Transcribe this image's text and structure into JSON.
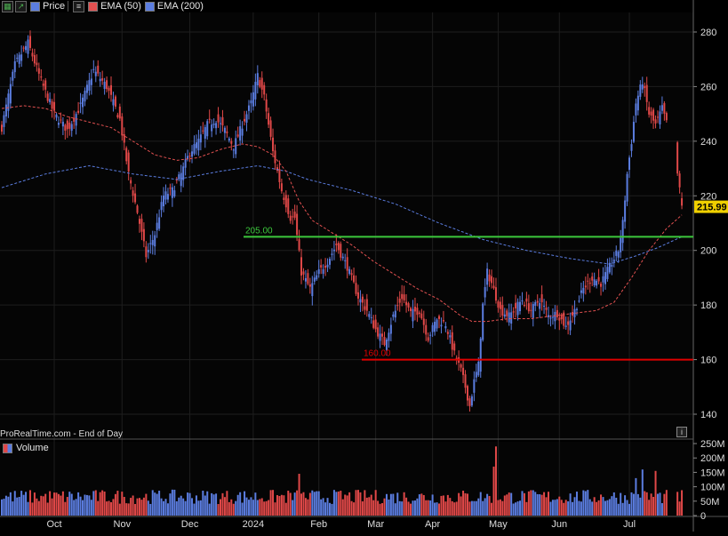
{
  "header": {
    "price_label": "Price",
    "ema50_label": "EMA (50)",
    "ema200_label": "EMA (200)",
    "ema50_color": "#e05050",
    "ema200_color": "#5b7de0",
    "icons": [
      "grid-icon",
      "trend-up-icon",
      "menu-icon"
    ]
  },
  "source_label": "ProRealTime.com - End of Day",
  "volume_label": "Volume",
  "colors": {
    "up": "#5b7de0",
    "down": "#e04848",
    "support": "#e00000",
    "resistance": "#3cc83c",
    "background": "#000000",
    "grid": "#1e1e1e"
  },
  "chart_data": {
    "type": "candlestick",
    "x_tick_labels": [
      "Oct",
      "Nov",
      "Dec",
      "2024",
      "Feb",
      "Mar",
      "Apr",
      "May",
      "Jun",
      "Jul"
    ],
    "y_tick_labels": [
      "140",
      "160",
      "180",
      "200",
      "220",
      "240",
      "260",
      "280"
    ],
    "ylim": [
      135,
      285
    ],
    "volume_tick_labels": [
      "250M",
      "200M",
      "150M",
      "100M",
      "50M",
      "0"
    ],
    "volume_ylim": [
      0,
      250
    ],
    "last_price_label": "215.99",
    "last_price": 215.99,
    "horizontal_levels": [
      {
        "label": "205.00",
        "value": 205.0,
        "kind": "resistance"
      },
      {
        "label": "160.00",
        "value": 160.0,
        "kind": "support"
      }
    ],
    "price_anchors_note": "",
    "price_path": [
      [
        0,
        245
      ],
      [
        6,
        268
      ],
      [
        12,
        276
      ],
      [
        18,
        262
      ],
      [
        24,
        250
      ],
      [
        30,
        244
      ],
      [
        36,
        253
      ],
      [
        42,
        266
      ],
      [
        48,
        260
      ],
      [
        54,
        248
      ],
      [
        58,
        228
      ],
      [
        62,
        214
      ],
      [
        66,
        198
      ],
      [
        70,
        206
      ],
      [
        74,
        220
      ],
      [
        78,
        222
      ],
      [
        82,
        228
      ],
      [
        86,
        236
      ],
      [
        90,
        240
      ],
      [
        94,
        246
      ],
      [
        98,
        248
      ],
      [
        102,
        244
      ],
      [
        106,
        238
      ],
      [
        110,
        246
      ],
      [
        114,
        254
      ],
      [
        117,
        264
      ],
      [
        120,
        256
      ],
      [
        124,
        236
      ],
      [
        128,
        222
      ],
      [
        132,
        212
      ],
      [
        134,
        212
      ],
      [
        137,
        192
      ],
      [
        141,
        186
      ],
      [
        145,
        192
      ],
      [
        149,
        196
      ],
      [
        153,
        202
      ],
      [
        158,
        194
      ],
      [
        163,
        183
      ],
      [
        167,
        178
      ],
      [
        171,
        171
      ],
      [
        175,
        166
      ],
      [
        179,
        176
      ],
      [
        183,
        183
      ],
      [
        187,
        177
      ],
      [
        191,
        178
      ],
      [
        195,
        168
      ],
      [
        199,
        175
      ],
      [
        203,
        173
      ],
      [
        207,
        162
      ],
      [
        208,
        160
      ],
      [
        210,
        156
      ],
      [
        212,
        150
      ],
      [
        214,
        143
      ],
      [
        216,
        152
      ],
      [
        218,
        158
      ],
      [
        220,
        180
      ],
      [
        222,
        192
      ],
      [
        224,
        188
      ],
      [
        228,
        178
      ],
      [
        232,
        176
      ],
      [
        238,
        182
      ],
      [
        242,
        178
      ],
      [
        246,
        182
      ],
      [
        250,
        176
      ],
      [
        254,
        177
      ],
      [
        258,
        172
      ],
      [
        262,
        178
      ],
      [
        266,
        186
      ],
      [
        270,
        190
      ],
      [
        274,
        188
      ],
      [
        278,
        194
      ],
      [
        282,
        200
      ],
      [
        284,
        210
      ],
      [
        286,
        228
      ],
      [
        288,
        240
      ],
      [
        290,
        254
      ],
      [
        293,
        262
      ],
      [
        296,
        250
      ],
      [
        299,
        246
      ],
      [
        302,
        252
      ],
      [
        305,
        244
      ],
      [
        307,
        250
      ],
      [
        309,
        228
      ],
      [
        311,
        216
      ]
    ],
    "ema50_path": [
      [
        0,
        252
      ],
      [
        10,
        253
      ],
      [
        20,
        252
      ],
      [
        30,
        249
      ],
      [
        40,
        247
      ],
      [
        50,
        245
      ],
      [
        60,
        240
      ],
      [
        70,
        235
      ],
      [
        80,
        233
      ],
      [
        90,
        234
      ],
      [
        100,
        237
      ],
      [
        110,
        239
      ],
      [
        117,
        238
      ],
      [
        124,
        235
      ],
      [
        130,
        229
      ],
      [
        136,
        218
      ],
      [
        142,
        211
      ],
      [
        150,
        207
      ],
      [
        160,
        202
      ],
      [
        170,
        196
      ],
      [
        180,
        191
      ],
      [
        190,
        186
      ],
      [
        200,
        182
      ],
      [
        205,
        179
      ],
      [
        210,
        176
      ],
      [
        215,
        174
      ],
      [
        222,
        174
      ],
      [
        232,
        175
      ],
      [
        242,
        175
      ],
      [
        252,
        176
      ],
      [
        262,
        177
      ],
      [
        272,
        178
      ],
      [
        280,
        181
      ],
      [
        288,
        190
      ],
      [
        296,
        200
      ],
      [
        304,
        208
      ],
      [
        311,
        213
      ]
    ],
    "ema200_path": [
      [
        0,
        223
      ],
      [
        20,
        228
      ],
      [
        40,
        231
      ],
      [
        60,
        228
      ],
      [
        80,
        226
      ],
      [
        100,
        229
      ],
      [
        117,
        231
      ],
      [
        130,
        229
      ],
      [
        140,
        226
      ],
      [
        160,
        222
      ],
      [
        180,
        217
      ],
      [
        200,
        210
      ],
      [
        220,
        204
      ],
      [
        240,
        200
      ],
      [
        260,
        197
      ],
      [
        278,
        195
      ],
      [
        290,
        198
      ],
      [
        300,
        201
      ],
      [
        311,
        205
      ]
    ]
  }
}
